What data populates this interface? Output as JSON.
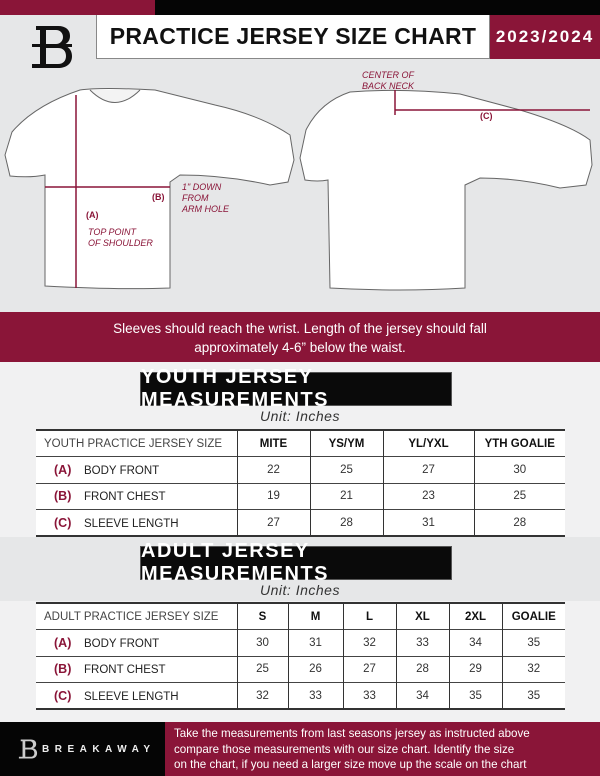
{
  "header": {
    "title": "PRACTICE JERSEY SIZE CHART",
    "season": "2023/2024",
    "logo_letter": "B"
  },
  "diagram": {
    "center_back_neck": [
      "CENTER OF",
      "BACK NECK"
    ],
    "label_a": "(A)",
    "label_b": "(B)",
    "label_c": "(C)",
    "top_point": [
      "TOP POINT",
      "OF SHOULDER"
    ],
    "arm_hole": [
      "1\" DOWN",
      "FROM",
      "ARM HOLE"
    ]
  },
  "instructions": [
    "Sleeves should reach the wrist. Length of the jersey should fall",
    "approximately 4-6” below the waist."
  ],
  "youth": {
    "title": "YOUTH JERSEY MEASUREMENTS",
    "unit": "Unit: Inches",
    "columns": [
      "YOUTH PRACTICE JERSEY SIZE",
      "MITE",
      "YS/YM",
      "YL/YXL",
      "YTH GOALIE"
    ],
    "rows": [
      {
        "letter": "(A)",
        "label": "BODY FRONT",
        "values": [
          "22",
          "25",
          "27",
          "30"
        ]
      },
      {
        "letter": "(B)",
        "label": "FRONT CHEST",
        "values": [
          "19",
          "21",
          "23",
          "25"
        ]
      },
      {
        "letter": "(C)",
        "label": "SLEEVE LENGTH",
        "values": [
          "27",
          "28",
          "31",
          "28"
        ]
      }
    ]
  },
  "adult": {
    "title": "ADULT JERSEY MEASUREMENTS",
    "unit": "Unit: Inches",
    "columns": [
      "ADULT PRACTICE JERSEY SIZE",
      "S",
      "M",
      "L",
      "XL",
      "2XL",
      "GOALIE"
    ],
    "rows": [
      {
        "letter": "(A)",
        "label": "BODY FRONT",
        "values": [
          "30",
          "31",
          "32",
          "33",
          "34",
          "35"
        ]
      },
      {
        "letter": "(B)",
        "label": "FRONT CHEST",
        "values": [
          "25",
          "26",
          "27",
          "28",
          "29",
          "32"
        ]
      },
      {
        "letter": "(C)",
        "label": "SLEEVE LENGTH",
        "values": [
          "32",
          "33",
          "33",
          "34",
          "35",
          "35"
        ]
      }
    ]
  },
  "footer": {
    "brand": "BREAKAWAY",
    "note": [
      "Take the measurements from last seasons jersey as instructed above",
      "compare those measurements  with our size chart. Identify the size",
      "on the chart, if you need a larger size move up the scale on the chart"
    ]
  },
  "colors": {
    "maroon": "#8a1538",
    "black": "#050505",
    "gray": "#e6e7e8"
  }
}
